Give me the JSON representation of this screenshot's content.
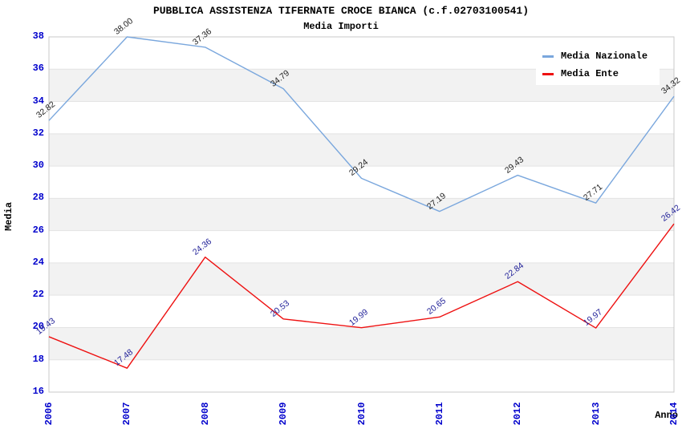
{
  "chart": {
    "title": "PUBBLICA ASSISTENZA TIFERNATE CROCE BIANCA (c.f.02703100541)",
    "subtitle": "Media Importi",
    "ylabel": "Media",
    "xlabel": "Anno"
  },
  "colors": {
    "axis_tick": "#0000cc",
    "band": "#f2f2f2",
    "grid": "#e3e3e3",
    "plot_border": "#c8c8c8",
    "media_nazionale_line": "#7aa7dd",
    "media_ente_line": "#ee1111",
    "media_nazionale_label": "#222222",
    "media_ente_label": "#222299"
  },
  "chart_data": {
    "type": "line",
    "title": "PUBBLICA ASSISTENZA TIFERNATE CROCE BIANCA (c.f.02703100541)",
    "subtitle": "Media Importi",
    "xlabel": "Anno",
    "ylabel": "Media",
    "categories": [
      "2006",
      "2007",
      "2008",
      "2009",
      "2010",
      "2011",
      "2012",
      "2013",
      "2014"
    ],
    "series": [
      {
        "name": "Media Nazionale",
        "values": [
          32.82,
          38.0,
          37.36,
          34.79,
          29.24,
          27.19,
          29.43,
          27.71,
          34.32
        ]
      },
      {
        "name": "Media Ente",
        "values": [
          19.43,
          17.48,
          24.36,
          20.53,
          19.99,
          20.65,
          22.84,
          19.97,
          26.42
        ]
      }
    ],
    "ylim": [
      16,
      38
    ],
    "ytick_step": 2,
    "grid": true,
    "band_fill": true,
    "legend_position": "top-right",
    "data_labels": true
  }
}
